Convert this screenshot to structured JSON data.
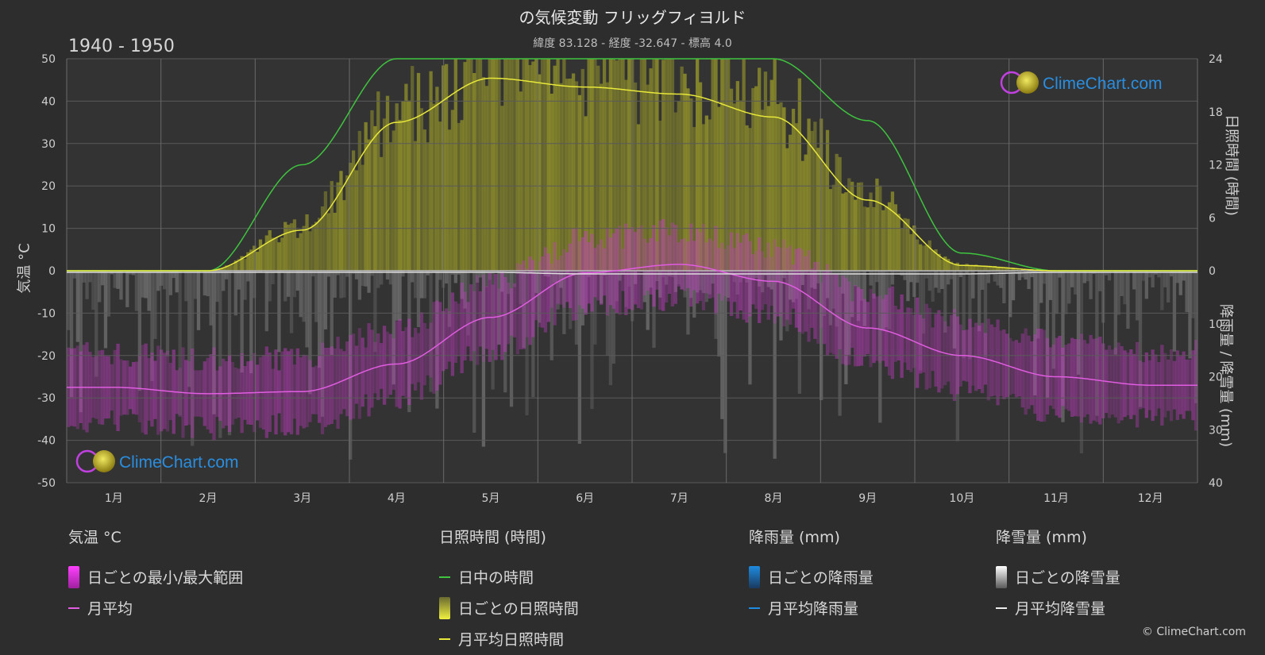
{
  "title": "の気候変動 フリッグフィヨルド",
  "subtitle": "緯度 83.128 - 経度 -32.647 - 標高 4.0",
  "period": "1940 - 1950",
  "watermark": "ClimeChart.com",
  "copyright": "© ClimeChart.com",
  "chart_data": {
    "type": "line",
    "categories": [
      "1月",
      "2月",
      "3月",
      "4月",
      "5月",
      "6月",
      "7月",
      "8月",
      "9月",
      "10月",
      "11月",
      "12月"
    ],
    "y_left": {
      "label": "気温 °C",
      "ticks": [
        50,
        40,
        30,
        20,
        10,
        0,
        -10,
        -20,
        -30,
        -40,
        -50
      ],
      "range": [
        -50,
        50
      ]
    },
    "y_right_top": {
      "label": "日照時間 (時間)",
      "ticks": [
        24,
        18,
        12,
        6,
        0
      ],
      "range": [
        0,
        24
      ]
    },
    "y_right_bottom": {
      "label": "降雨量 / 降雪量 (mm)",
      "ticks": [
        0,
        10,
        20,
        30,
        40
      ],
      "range": [
        0,
        40
      ]
    },
    "series": [
      {
        "name": "月平均",
        "group": "気温 °C",
        "color": "#e05ce0",
        "values": [
          -27.5,
          -29,
          -28.5,
          -22,
          -11,
          -0.5,
          1.5,
          -2.5,
          -13.5,
          -20,
          -25,
          -27
        ]
      },
      {
        "name": "日中の時間",
        "group": "日照時間 (時間)",
        "color": "#3ec43e",
        "values": [
          0,
          0,
          12,
          24,
          24,
          24,
          24,
          24,
          17,
          2,
          0,
          0
        ]
      },
      {
        "name": "月平均日照時間",
        "group": "日照時間 (時間)",
        "color": "#e8e83a",
        "values": [
          0,
          0,
          4.6,
          16.8,
          21.8,
          20.8,
          20,
          17.4,
          8,
          0.6,
          0,
          0
        ]
      },
      {
        "name": "月平均降雪量",
        "group": "降雪量 (mm)",
        "color": "#dddddd",
        "values": [
          0.3,
          0.3,
          0.3,
          0.3,
          0.3,
          0.6,
          0.6,
          0.6,
          0.6,
          0.6,
          0.3,
          0.3
        ]
      }
    ]
  },
  "legend": {
    "temperature": {
      "title": "気温 °C",
      "range_label": "日ごとの最小/最大範囲",
      "mean_label": "月平均"
    },
    "sunshine": {
      "title": "日照時間 (時間)",
      "daylight_label": "日中の時間",
      "daily_label": "日ごとの日照時間",
      "mean_label": "月平均日照時間"
    },
    "rain": {
      "title": "降雨量 (mm)",
      "daily_label": "日ごとの降雨量",
      "mean_label": "月平均降雨量"
    },
    "snow": {
      "title": "降雪量 (mm)",
      "daily_label": "日ごとの降雪量",
      "mean_label": "月平均降雪量"
    }
  },
  "colors": {
    "background": "#2d2d2d",
    "temperature_band": "#c43cc4",
    "sunshine_band": "#9a9a2a",
    "rain": "#1e8be0",
    "snow": "#9a9a9a"
  }
}
